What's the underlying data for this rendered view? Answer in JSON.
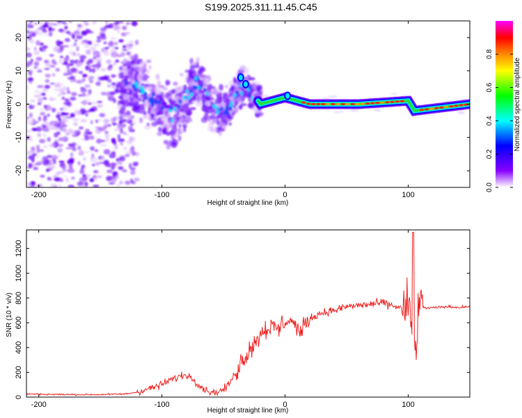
{
  "title": "S199.2025.311.11.45.C45",
  "chart_data": [
    {
      "type": "heatmap",
      "name": "spectrogram",
      "xlabel": "Height of straight line (km)",
      "ylabel": "Frequency (Hz)",
      "xlim": [
        -210,
        150
      ],
      "ylim": [
        -25,
        25
      ],
      "xticks": [
        -200,
        -100,
        0,
        100
      ],
      "yticks": [
        -20,
        -10,
        0,
        10,
        20
      ],
      "colorbar": {
        "label": "Normalized spectral amplitude",
        "range": [
          0,
          1
        ],
        "ticks": [
          0.0,
          0.2,
          0.4,
          0.6,
          0.8
        ],
        "colors": [
          "#ffffff",
          "#8800ff",
          "#0000ff",
          "#00ffff",
          "#00ff00",
          "#ffff00",
          "#ff8800",
          "#ff0000",
          "#ff00ff"
        ]
      },
      "ridge_track": [
        {
          "x": -130,
          "y": 6
        },
        {
          "x": -120,
          "y": 5
        },
        {
          "x": -110,
          "y": 2
        },
        {
          "x": -100,
          "y": -1
        },
        {
          "x": -90,
          "y": -3
        },
        {
          "x": -80,
          "y": 2
        },
        {
          "x": -72,
          "y": 7
        },
        {
          "x": -60,
          "y": 0
        },
        {
          "x": -50,
          "y": -3
        },
        {
          "x": -40,
          "y": 3
        },
        {
          "x": -32,
          "y": 6
        },
        {
          "x": -20,
          "y": 0
        },
        {
          "x": 0,
          "y": 2
        },
        {
          "x": 20,
          "y": 0
        },
        {
          "x": 60,
          "y": 0
        },
        {
          "x": 100,
          "y": 1
        },
        {
          "x": 105,
          "y": -2
        },
        {
          "x": 150,
          "y": 0
        }
      ]
    },
    {
      "type": "line",
      "name": "snr",
      "xlabel": "Height of straight line (km)",
      "ylabel": "SNR (10 * v/v)",
      "xlim": [
        -210,
        150
      ],
      "ylim": [
        0,
        1350
      ],
      "xticks": [
        -200,
        -100,
        0,
        100
      ],
      "yticks": [
        0,
        200,
        400,
        600,
        800,
        1000,
        1200
      ],
      "color": "#ee2020",
      "x": [
        -210,
        -190,
        -170,
        -150,
        -130,
        -120,
        -110,
        -100,
        -95,
        -90,
        -85,
        -80,
        -75,
        -70,
        -65,
        -60,
        -55,
        -50,
        -45,
        -40,
        -35,
        -30,
        -27,
        -25,
        -22,
        -20,
        -15,
        -10,
        -5,
        0,
        5,
        10,
        13,
        15,
        20,
        25,
        30,
        40,
        50,
        60,
        70,
        80,
        90,
        95,
        100,
        102,
        104,
        106,
        108,
        110,
        115,
        120,
        130,
        140,
        150
      ],
      "y": [
        25,
        22,
        20,
        20,
        25,
        40,
        70,
        100,
        130,
        150,
        170,
        180,
        150,
        100,
        60,
        40,
        40,
        60,
        110,
        200,
        300,
        360,
        420,
        430,
        470,
        520,
        560,
        560,
        550,
        610,
        620,
        560,
        500,
        580,
        630,
        660,
        680,
        700,
        730,
        740,
        750,
        760,
        730,
        720,
        700,
        650,
        400,
        380,
        700,
        730,
        720,
        720,
        730,
        725,
        730
      ]
    }
  ]
}
